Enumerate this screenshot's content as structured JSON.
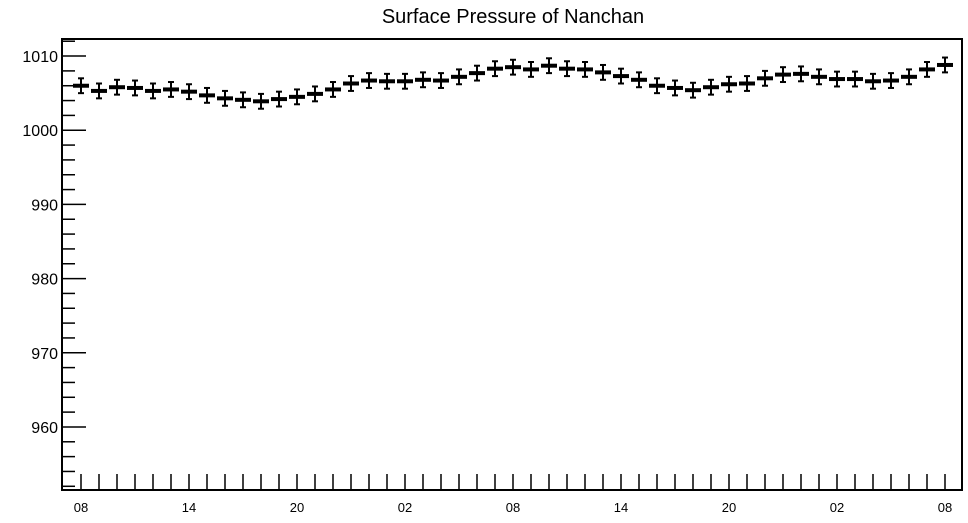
{
  "chart_data": {
    "type": "scatter",
    "title": "Surface Pressure of Nanchan",
    "xlabel": "",
    "ylabel": "",
    "ylim": [
      951.5,
      1012.3
    ],
    "grid": false,
    "y_ticks": [
      960,
      970,
      980,
      990,
      1000,
      1010
    ],
    "y_tick_labels": [
      "960",
      "970",
      "980",
      "990",
      "1000",
      "1010"
    ],
    "x_tick_labels": [
      "08",
      "14",
      "20",
      "02",
      "08",
      "14",
      "20",
      "02",
      "08"
    ],
    "x_tick_label_steps": [
      0,
      6,
      12,
      18,
      24,
      30,
      36,
      42,
      48
    ],
    "x_step_hours": 1,
    "series": [
      {
        "values": [
          1006.0,
          1005.3,
          1005.8,
          1005.7,
          1005.3,
          1005.5,
          1005.2,
          1004.7,
          1004.3,
          1004.1,
          1003.9,
          1004.2,
          1004.5,
          1004.9,
          1005.5,
          1006.3,
          1006.7,
          1006.6,
          1006.6,
          1006.8,
          1006.7,
          1007.2,
          1007.7,
          1008.3,
          1008.5,
          1008.2,
          1008.7,
          1008.3,
          1008.2,
          1007.8,
          1007.3,
          1006.8,
          1006.0,
          1005.7,
          1005.4,
          1005.8,
          1006.2,
          1006.3,
          1007.0,
          1007.5,
          1007.6,
          1007.2,
          1006.9,
          1006.9,
          1006.6,
          1006.7,
          1007.2,
          1008.2,
          1008.8
        ],
        "error": 1.0
      }
    ]
  }
}
